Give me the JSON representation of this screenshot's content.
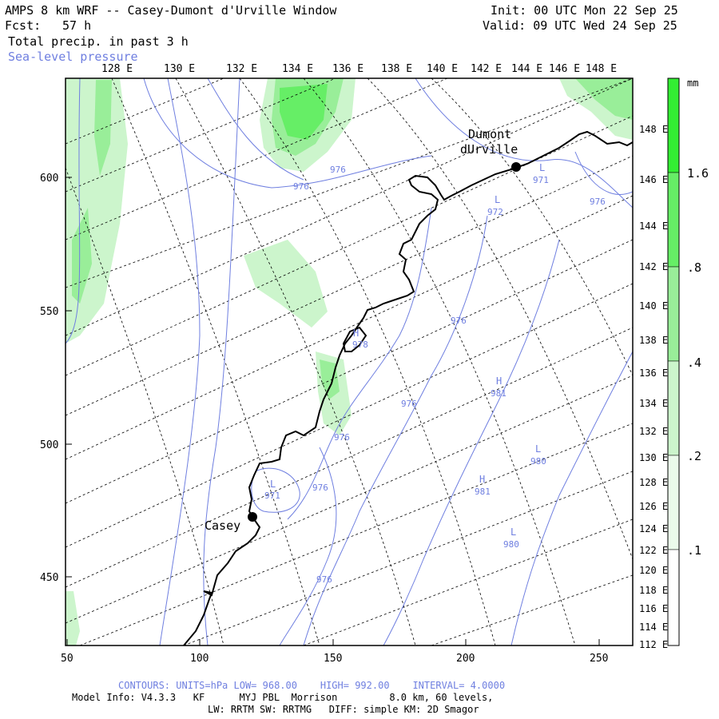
{
  "header": {
    "title": "AMPS 8 km WRF -- Casey-Dumont d'Urville Window",
    "fcst_label": "Fcst:",
    "fcst_value": "57 h",
    "field_label": "Total precip. in past 3 h",
    "overlay_label": "Sea-level pressure",
    "init_time": "Init: 00 UTC Mon 22 Sep 25",
    "valid_time": "Valid: 09 UTC Wed 24 Sep 25"
  },
  "axes": {
    "top_longitudes": [
      "128 E",
      "130 E",
      "132 E",
      "134 E",
      "136 E",
      "138 E",
      "140 E",
      "142 E",
      "144 E",
      "146 E",
      "148 E"
    ],
    "right_longitudes": [
      "148 E",
      "146 E",
      "144 E",
      "142 E",
      "140 E",
      "138 E",
      "136 E",
      "134 E",
      "132 E",
      "130 E",
      "128 E",
      "126 E",
      "124 E",
      "122 E",
      "120 E",
      "118 E",
      "116 E",
      "114 E",
      "112 E"
    ],
    "left_ticks": [
      "600",
      "550",
      "500",
      "450"
    ],
    "bottom_ticks": [
      "50",
      "100",
      "150",
      "200",
      "250"
    ]
  },
  "colorbar": {
    "units": "mm",
    "labels": [
      "1.6",
      ".8",
      ".4",
      ".2",
      ".1"
    ],
    "colors": [
      "#33ee33",
      "#66ee66",
      "#99ee99",
      "#ccf5cc",
      "#ffffff"
    ]
  },
  "stations": [
    {
      "name": "Dumont dUrville",
      "line1": "Dumont",
      "line2": "dUrville"
    },
    {
      "name": "Casey",
      "line1": "Casey"
    }
  ],
  "pressure_labels": [
    {
      "text": "976"
    },
    {
      "text": "976"
    },
    {
      "text": "971"
    },
    {
      "text": "972"
    },
    {
      "text": "976"
    },
    {
      "text": "976"
    },
    {
      "text": "978"
    },
    {
      "text": "981"
    },
    {
      "text": "976"
    },
    {
      "text": "976"
    },
    {
      "text": "980"
    },
    {
      "text": "981"
    },
    {
      "text": "971"
    },
    {
      "text": "976"
    },
    {
      "text": "980"
    },
    {
      "text": "976"
    }
  ],
  "pressure_markers": [
    {
      "text": "L"
    },
    {
      "text": "L"
    },
    {
      "text": "H"
    },
    {
      "text": "H"
    },
    {
      "text": "L"
    },
    {
      "text": "H"
    },
    {
      "text": "L"
    },
    {
      "text": "L"
    }
  ],
  "footer": {
    "contours": "CONTOURS: UNITS=hPa LOW= 968.00    HIGH= 992.00    INTERVAL= 4.0000",
    "model_info": "Model Info: V4.3.3   KF      MYJ PBL  Morrison         8.0 km, 60 levels,",
    "physics": "LW: RRTM SW: RRTMG   DIFF: simple KM: 2D Smagor"
  }
}
